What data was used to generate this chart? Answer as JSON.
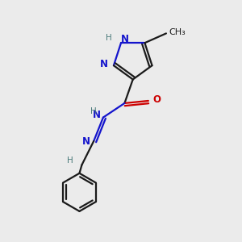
{
  "background_color": "#ebebeb",
  "bond_color": "#1a1a1a",
  "N_color": "#1414cc",
  "O_color": "#cc0000",
  "H_color": "#4a7a7a",
  "line_width": 1.6,
  "figsize": [
    3.0,
    3.0
  ],
  "dpi": 100,
  "xlim": [
    0,
    1
  ],
  "ylim": [
    0,
    1
  ]
}
